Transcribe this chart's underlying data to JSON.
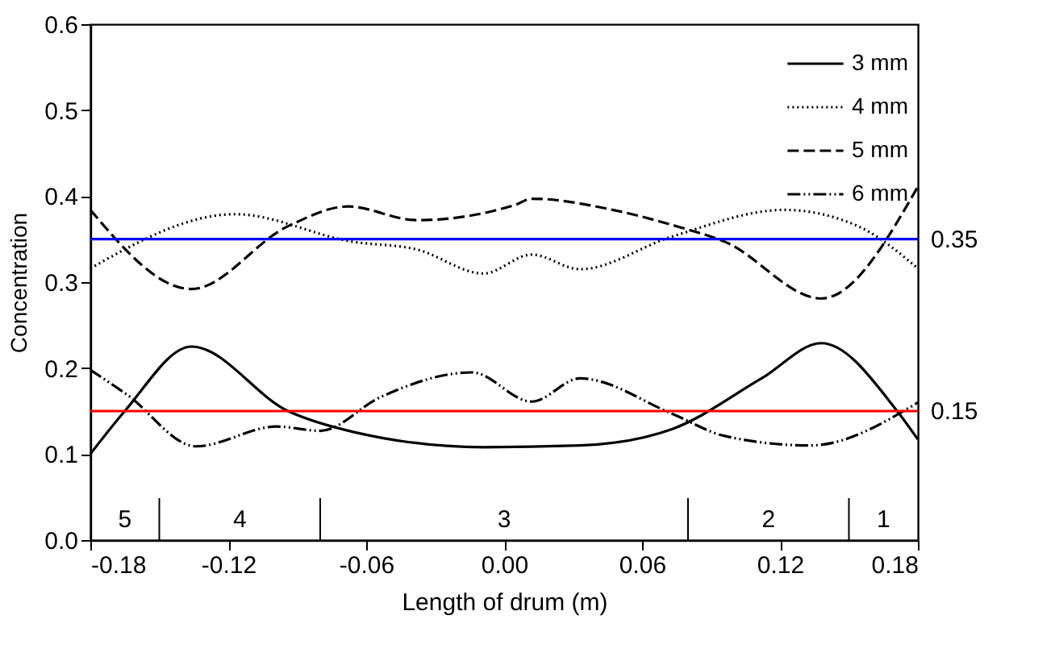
{
  "chart_data": {
    "type": "line",
    "xlabel": "Length of drum (m)",
    "ylabel": "Concentration",
    "series": [
      {
        "name": "3 mm",
        "color": "#000000",
        "line_style": "solid",
        "x": [
          -0.18,
          -0.165,
          -0.136,
          -0.094,
          -0.066,
          -0.009,
          0.033,
          0.073,
          0.112,
          0.138,
          0.171,
          0.18
        ],
        "values": [
          0.1,
          0.15,
          0.225,
          0.15,
          0.126,
          0.108,
          0.11,
          0.129,
          0.188,
          0.229,
          0.15,
          0.117
        ]
      },
      {
        "name": "4 mm",
        "color": "#000000",
        "line_style": "dotted",
        "x": [
          -0.18,
          -0.117,
          -0.066,
          -0.038,
          -0.009,
          0.012,
          0.033,
          0.073,
          0.122,
          0.154,
          0.18
        ],
        "values": [
          0.316,
          0.379,
          0.347,
          0.338,
          0.31,
          0.332,
          0.315,
          0.353,
          0.384,
          0.365,
          0.316
        ]
      },
      {
        "name": "5 mm",
        "color": "#000000",
        "line_style": "dashed",
        "x": [
          -0.18,
          -0.136,
          -0.094,
          -0.068,
          -0.038,
          0.005,
          0.012,
          0.049,
          0.075,
          0.096,
          0.138,
          0.18
        ],
        "values": [
          0.384,
          0.292,
          0.365,
          0.388,
          0.372,
          0.39,
          0.397,
          0.383,
          0.365,
          0.347,
          0.281,
          0.411
        ]
      },
      {
        "name": "6 mm",
        "color": "#000000",
        "line_style": "dashdot",
        "x": [
          -0.18,
          -0.164,
          -0.134,
          -0.099,
          -0.08,
          -0.054,
          -0.014,
          0.012,
          0.033,
          0.073,
          0.096,
          0.133,
          0.18
        ],
        "values": [
          0.198,
          0.169,
          0.109,
          0.132,
          0.127,
          0.166,
          0.195,
          0.161,
          0.188,
          0.147,
          0.121,
          0.11,
          0.16
        ]
      }
    ],
    "xlim": [
      -0.18,
      0.18
    ],
    "xticks": [
      -0.18,
      -0.12,
      -0.06,
      {
        "value": 0,
        "label": "0.00"
      },
      0.06,
      0.12,
      0.18
    ],
    "ylim": [
      0,
      0.6
    ],
    "yticks": [
      {
        "value": 0,
        "label": "0.0"
      },
      0.1,
      0.2,
      0.3,
      0.4,
      0.5,
      0.6
    ],
    "ref_lines": [
      {
        "axis": "y",
        "value": 0.35,
        "label": "0.35",
        "color": "#0000ff"
      },
      {
        "axis": "y",
        "value": 0.15,
        "label": "0.15",
        "color": "#ff0000"
      },
      {
        "axis": "x",
        "value": -0.15,
        "color": "#000000"
      },
      {
        "axis": "x",
        "value": -0.08,
        "color": "#000000"
      },
      {
        "axis": "x",
        "value": 0.08,
        "color": "#000000"
      },
      {
        "axis": "x",
        "value": 0.15,
        "color": "#000000"
      }
    ],
    "annotations": [
      "5",
      "4",
      "3",
      "2",
      "1"
    ],
    "grid": false,
    "legend": "top right",
    "marker": "none"
  }
}
